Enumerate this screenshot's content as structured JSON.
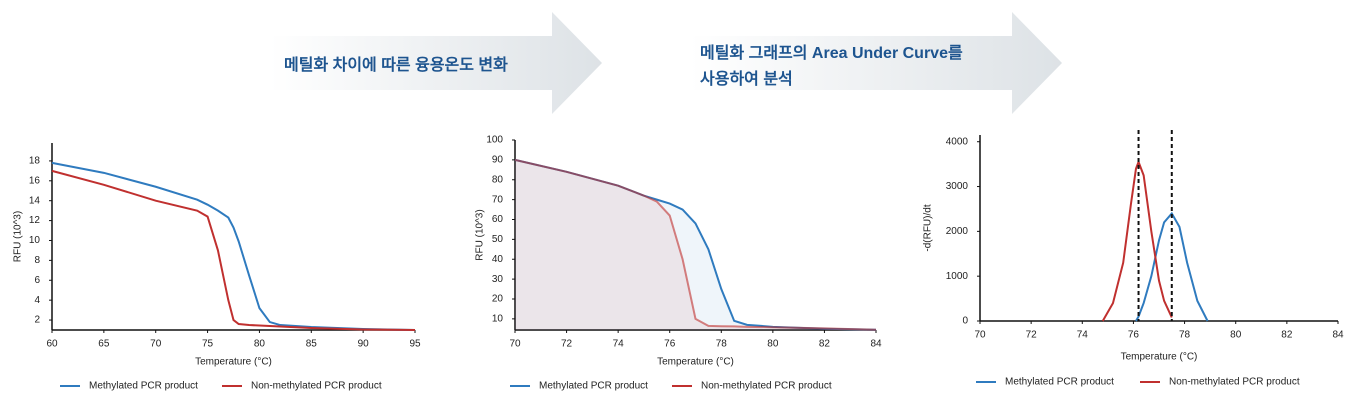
{
  "arrows": [
    {
      "lines": [
        "메틸화 차이에 따른 융용온도 변화"
      ]
    },
    {
      "lines": [
        "메틸화 그래프의 Area Under Curve를",
        "사용하여 분석"
      ]
    }
  ],
  "chart_data": [
    {
      "type": "line",
      "y_label": "RFU (10^3)",
      "x_label": "Temperature (°C)",
      "x": [
        60,
        65,
        70,
        74,
        75,
        76,
        77,
        77.5,
        78,
        79,
        80,
        81,
        82,
        85,
        90,
        95
      ],
      "series": [
        {
          "name": "Methylated PCR product",
          "color": "#2f7bbf",
          "values": [
            17.8,
            16.8,
            15.4,
            14.1,
            13.6,
            13.0,
            12.3,
            11.3,
            9.9,
            6.5,
            3.2,
            1.8,
            1.5,
            1.3,
            1.1,
            1.0
          ]
        },
        {
          "name": "Non-methylated PCR product",
          "color": "#c0302f",
          "values": [
            17.0,
            15.6,
            14.0,
            13.0,
            12.4,
            9.0,
            4.0,
            2.0,
            1.6,
            1.5,
            1.45,
            1.4,
            1.35,
            1.2,
            1.05,
            1.0
          ]
        }
      ],
      "xlim": [
        60,
        95
      ],
      "xticks": [
        60,
        65,
        70,
        75,
        80,
        85,
        90,
        95
      ],
      "ylim": [
        1,
        19.8
      ],
      "yticks": [
        2,
        4,
        6,
        8,
        10,
        12,
        14,
        16,
        18
      ],
      "area": false
    },
    {
      "type": "line",
      "y_label": "RFU (10^3)",
      "x_label": "Temperature (°C)",
      "x": [
        70,
        72,
        74,
        75,
        75.5,
        76,
        76.5,
        77,
        77.5,
        78,
        78.5,
        79,
        80,
        82,
        84
      ],
      "series": [
        {
          "name": "Methylated PCR product",
          "color": "#2f7bbf",
          "values": [
            90,
            84,
            77,
            72,
            70,
            68,
            65,
            58,
            45,
            25,
            9,
            7,
            6,
            5,
            4.5
          ]
        },
        {
          "name": "Non-methylated PCR product",
          "color": "#c0302f",
          "values": [
            90,
            84,
            77,
            72,
            69,
            62,
            40,
            10,
            6.5,
            6.3,
            6.2,
            6,
            5.8,
            5.2,
            4.5
          ]
        }
      ],
      "xlim": [
        70,
        84
      ],
      "xticks": [
        70,
        72,
        74,
        76,
        78,
        80,
        82,
        84
      ],
      "ylim": [
        4.4,
        100
      ],
      "yticks": [
        10,
        20,
        30,
        40,
        50,
        60,
        70,
        80,
        90,
        100
      ],
      "area": true
    },
    {
      "type": "line",
      "y_label": "-d(RFU)/dt",
      "x_label": "Temperature (°C)",
      "x": [
        74.8,
        75.2,
        75.6,
        75.9,
        76.1,
        76.2,
        76.4,
        76.7,
        77.0,
        77.2,
        77.5,
        77.8,
        78.1,
        78.5,
        78.9
      ],
      "series": [
        {
          "name": "Methylated PCR product",
          "color": "#2f7bbf",
          "values": [
            null,
            null,
            null,
            null,
            0,
            100,
            400,
            1000,
            1800,
            2200,
            2400,
            2100,
            1300,
            450,
            0
          ]
        },
        {
          "name": "Non-methylated PCR product",
          "color": "#c0302f",
          "values": [
            0,
            400,
            1300,
            2600,
            3400,
            3550,
            3250,
            2000,
            900,
            450,
            80,
            null,
            null,
            null,
            null
          ]
        }
      ],
      "reference_lines": [
        76.2,
        77.5
      ],
      "xlim": [
        70,
        84
      ],
      "xticks": [
        70,
        72,
        74,
        76,
        78,
        80,
        82,
        84
      ],
      "ylim": [
        0,
        4150
      ],
      "yticks": [
        0,
        1000,
        2000,
        3000,
        4000
      ],
      "area": false
    }
  ]
}
